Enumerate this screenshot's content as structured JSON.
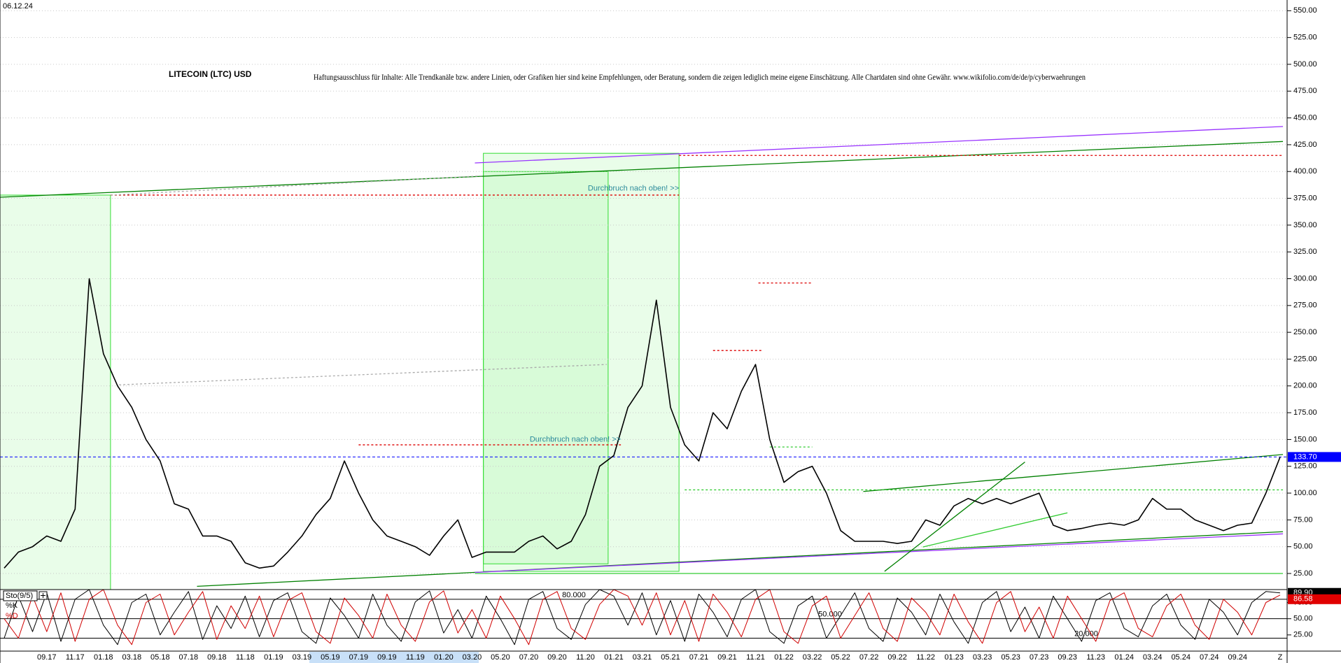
{
  "header": {
    "date": "06.12.24"
  },
  "chart_data": [
    {
      "type": "line",
      "title": "LITECOIN (LTC) USD",
      "subtitle": "Haftungsausschluss für Inhalte: Alle Trendkanäle bzw. andere Linien, oder Grafiken hier sind keine Empfehlungen, oder Beratung, sondern die zeigen lediglich meine eigene Einschätzung. Alle Chartdaten sind ohne Gewähr.  www.wikifolio.com/de/de/p/cyberwaehrungen",
      "categories": [
        null,
        null,
        null,
        "09.17",
        null,
        "11.17",
        null,
        "01.18",
        null,
        "03.18",
        null,
        "05.18",
        null,
        "07.18",
        null,
        "09.18",
        null,
        "11.18",
        null,
        "01.19",
        null,
        "03.19",
        null,
        "05.19",
        null,
        "07.19",
        null,
        "09.19",
        null,
        "11.19",
        null,
        "01.20",
        null,
        "03.20",
        null,
        "05.20",
        null,
        "07.20",
        null,
        "09.20",
        null,
        "11.20",
        null,
        "01.21",
        null,
        "03.21",
        null,
        "05.21",
        null,
        "07.21",
        null,
        "09.21",
        null,
        "11.21",
        null,
        "01.22",
        null,
        "03.22",
        null,
        "05.22",
        null,
        "07.22",
        null,
        "09.22",
        null,
        "11.22",
        null,
        "01.23",
        null,
        "03.23",
        null,
        "05.23",
        null,
        "07.23",
        null,
        "09.23",
        null,
        "11.23",
        null,
        "01.24",
        null,
        "03.24",
        null,
        "05.24",
        null,
        "07.24",
        null,
        "09.24",
        null,
        null,
        null
      ],
      "x_end_label": "Z",
      "series": [
        {
          "name": "LTC",
          "color": "#000000",
          "values": [
            30,
            45,
            50,
            60,
            55,
            85,
            300,
            230,
            200,
            180,
            150,
            130,
            90,
            85,
            60,
            60,
            55,
            35,
            30,
            32,
            45,
            60,
            80,
            95,
            130,
            100,
            75,
            60,
            55,
            50,
            42,
            60,
            75,
            40,
            45,
            45,
            45,
            55,
            60,
            48,
            55,
            80,
            125,
            135,
            180,
            200,
            280,
            180,
            145,
            130,
            175,
            160,
            195,
            220,
            150,
            110,
            120,
            125,
            100,
            65,
            55,
            55,
            55,
            53,
            55,
            75,
            70,
            88,
            95,
            90,
            95,
            90,
            95,
            100,
            70,
            65,
            67,
            70,
            72,
            70,
            75,
            95,
            85,
            85,
            75,
            70,
            65,
            70,
            72,
            100,
            133.7
          ]
        }
      ],
      "ylim": [
        10,
        560
      ],
      "yticks": [
        {
          "value": 25,
          "label": "25.00"
        },
        {
          "value": 50,
          "label": "50.00"
        },
        {
          "value": 75,
          "label": "75.00"
        },
        {
          "value": 100,
          "label": "100.00"
        },
        {
          "value": 125,
          "label": "125.00"
        },
        {
          "value": 150,
          "label": "150.00"
        },
        {
          "value": 175,
          "label": "175.00"
        },
        {
          "value": 200,
          "label": "200.00"
        },
        {
          "value": 225,
          "label": "225.00"
        },
        {
          "value": 250,
          "label": "250.00"
        },
        {
          "value": 275,
          "label": "275.00"
        },
        {
          "value": 300,
          "label": "300.00"
        },
        {
          "value": 325,
          "label": "325.00"
        },
        {
          "value": 350,
          "label": "350.00"
        },
        {
          "value": 375,
          "label": "375.00"
        },
        {
          "value": 400,
          "label": "400.00"
        },
        {
          "value": 425,
          "label": "425.00"
        },
        {
          "value": 450,
          "label": "450.00"
        },
        {
          "value": 475,
          "label": "475.00"
        },
        {
          "value": 500,
          "label": "500.00"
        },
        {
          "value": 525,
          "label": "525.00"
        },
        {
          "value": 550,
          "label": "550.00"
        }
      ],
      "grid": true,
      "price_tag": {
        "value": 133.7,
        "label": "133.70",
        "color": "#0000ff"
      },
      "annotations": [
        {
          "text": "Durchbruch nach oben! >>",
          "x": 47.6,
          "y": 384
        },
        {
          "text": "Durchbruch nach oben! >>",
          "x": 43.5,
          "y": 150
        }
      ],
      "zones": [
        {
          "x": [
            -0.3,
            7.5
          ],
          "y": [
            10,
            378
          ]
        },
        {
          "x": [
            33.8,
            47.6
          ],
          "y": [
            27,
            417
          ]
        },
        {
          "x": [
            33.8,
            42.6
          ],
          "y": [
            34,
            400
          ]
        }
      ],
      "lines": [
        {
          "x": [
            -0.3,
            90.2
          ],
          "y": [
            376,
            428
          ],
          "color": "#008000",
          "dash": false
        },
        {
          "x": [
            33.2,
            90.2
          ],
          "y": [
            408,
            442
          ],
          "color": "#9933ff",
          "dash": false
        },
        {
          "x": [
            47.6,
            90.2
          ],
          "y": [
            415,
            415
          ],
          "color": "#dd0000",
          "dash": true
        },
        {
          "x": [
            7.5,
            47.6
          ],
          "y": [
            378,
            378
          ],
          "color": "#dd0000",
          "dash": true
        },
        {
          "x": [
            7.5,
            33.8
          ],
          "y": [
            378,
            396
          ],
          "color": "#aaaaaa",
          "dash": true
        },
        {
          "x": [
            8.1,
            42.5
          ],
          "y": [
            201,
            220
          ],
          "color": "#aaaaaa",
          "dash": true
        },
        {
          "x": [
            13.6,
            90.2
          ],
          "y": [
            13,
            64
          ],
          "color": "#008000",
          "dash": false
        },
        {
          "x": [
            33.2,
            90.2
          ],
          "y": [
            26,
            62
          ],
          "color": "#9933ff",
          "dash": false
        },
        {
          "x": [
            33.2,
            90.2
          ],
          "y": [
            25,
            25
          ],
          "color": "#33cc33",
          "dash": false
        },
        {
          "x": [
            60.6,
            90.2
          ],
          "y": [
            101.5,
            136
          ],
          "color": "#008000",
          "dash": false
        },
        {
          "x": [
            48,
            90.2
          ],
          "y": [
            103,
            103
          ],
          "color": "#33cc33",
          "dash": true
        },
        {
          "x": [
            53.2,
            57
          ],
          "y": [
            296,
            296
          ],
          "color": "#dd0000",
          "dash": true
        },
        {
          "x": [
            50,
            53.5
          ],
          "y": [
            233,
            233
          ],
          "color": "#dd0000",
          "dash": true
        },
        {
          "x": [
            25,
            43.5
          ],
          "y": [
            145,
            145
          ],
          "color": "#dd0000",
          "dash": true
        },
        {
          "x": [
            62.1,
            72
          ],
          "y": [
            27,
            129
          ],
          "color": "#008000",
          "dash": false
        },
        {
          "x": [
            64.8,
            75
          ],
          "y": [
            49.7,
            81.6
          ],
          "color": "#33cc33",
          "dash": false
        },
        {
          "x": [
            54,
            57
          ],
          "y": [
            143,
            143
          ],
          "color": "#33cc33",
          "dash": true
        }
      ]
    },
    {
      "type": "line",
      "title": "Sto(9/5)",
      "series": [
        {
          "name": "%K",
          "color": "#000000",
          "values": [
            20,
            85,
            30,
            90,
            15,
            80,
            95,
            40,
            10,
            75,
            88,
            25,
            60,
            92,
            18,
            70,
            35,
            85,
            22,
            78,
            90,
            30,
            12,
            82,
            55,
            20,
            88,
            40,
            15,
            76,
            93,
            28,
            64,
            20,
            85,
            50,
            10,
            80,
            92,
            35,
            18,
            72,
            95,
            85,
            40,
            90,
            25,
            78,
            15,
            88,
            60,
            22,
            80,
            95,
            30,
            12,
            70,
            85,
            20,
            55,
            90,
            35,
            15,
            82,
            60,
            25,
            88,
            45,
            12,
            75,
            92,
            30,
            68,
            20,
            85,
            50,
            15,
            78,
            90,
            35,
            22,
            70,
            88,
            40,
            18,
            80,
            60,
            25,
            75,
            92,
            89.9
          ]
        },
        {
          "name": "%D",
          "color": "#d00000",
          "values": [
            50,
            20,
            85,
            30,
            90,
            15,
            80,
            95,
            40,
            10,
            75,
            88,
            25,
            60,
            92,
            18,
            70,
            35,
            85,
            22,
            78,
            90,
            30,
            12,
            82,
            55,
            20,
            88,
            40,
            15,
            76,
            93,
            28,
            64,
            20,
            85,
            50,
            10,
            80,
            92,
            35,
            18,
            72,
            95,
            85,
            40,
            90,
            25,
            78,
            15,
            88,
            60,
            22,
            80,
            95,
            30,
            12,
            70,
            85,
            20,
            55,
            90,
            35,
            15,
            82,
            60,
            25,
            88,
            45,
            12,
            75,
            92,
            30,
            68,
            20,
            85,
            50,
            15,
            78,
            90,
            35,
            22,
            70,
            88,
            40,
            18,
            80,
            60,
            25,
            75,
            86.58
          ]
        }
      ],
      "ylim": [
        0,
        95
      ],
      "yticks": [
        {
          "value": 25,
          "label": "25.00"
        },
        {
          "value": 50,
          "label": "50.00"
        },
        {
          "value": 75,
          "label": "75.00"
        }
      ],
      "levels": [
        {
          "value": 80,
          "label": "80.000"
        },
        {
          "value": 50,
          "label": "50.000"
        },
        {
          "value": 20,
          "label": "20.000"
        }
      ],
      "tags": [
        {
          "value": 89.9,
          "label": "89.90",
          "color": "#000000"
        },
        {
          "value": 86.58,
          "label": "86.58",
          "color": "#e00000"
        }
      ]
    }
  ]
}
